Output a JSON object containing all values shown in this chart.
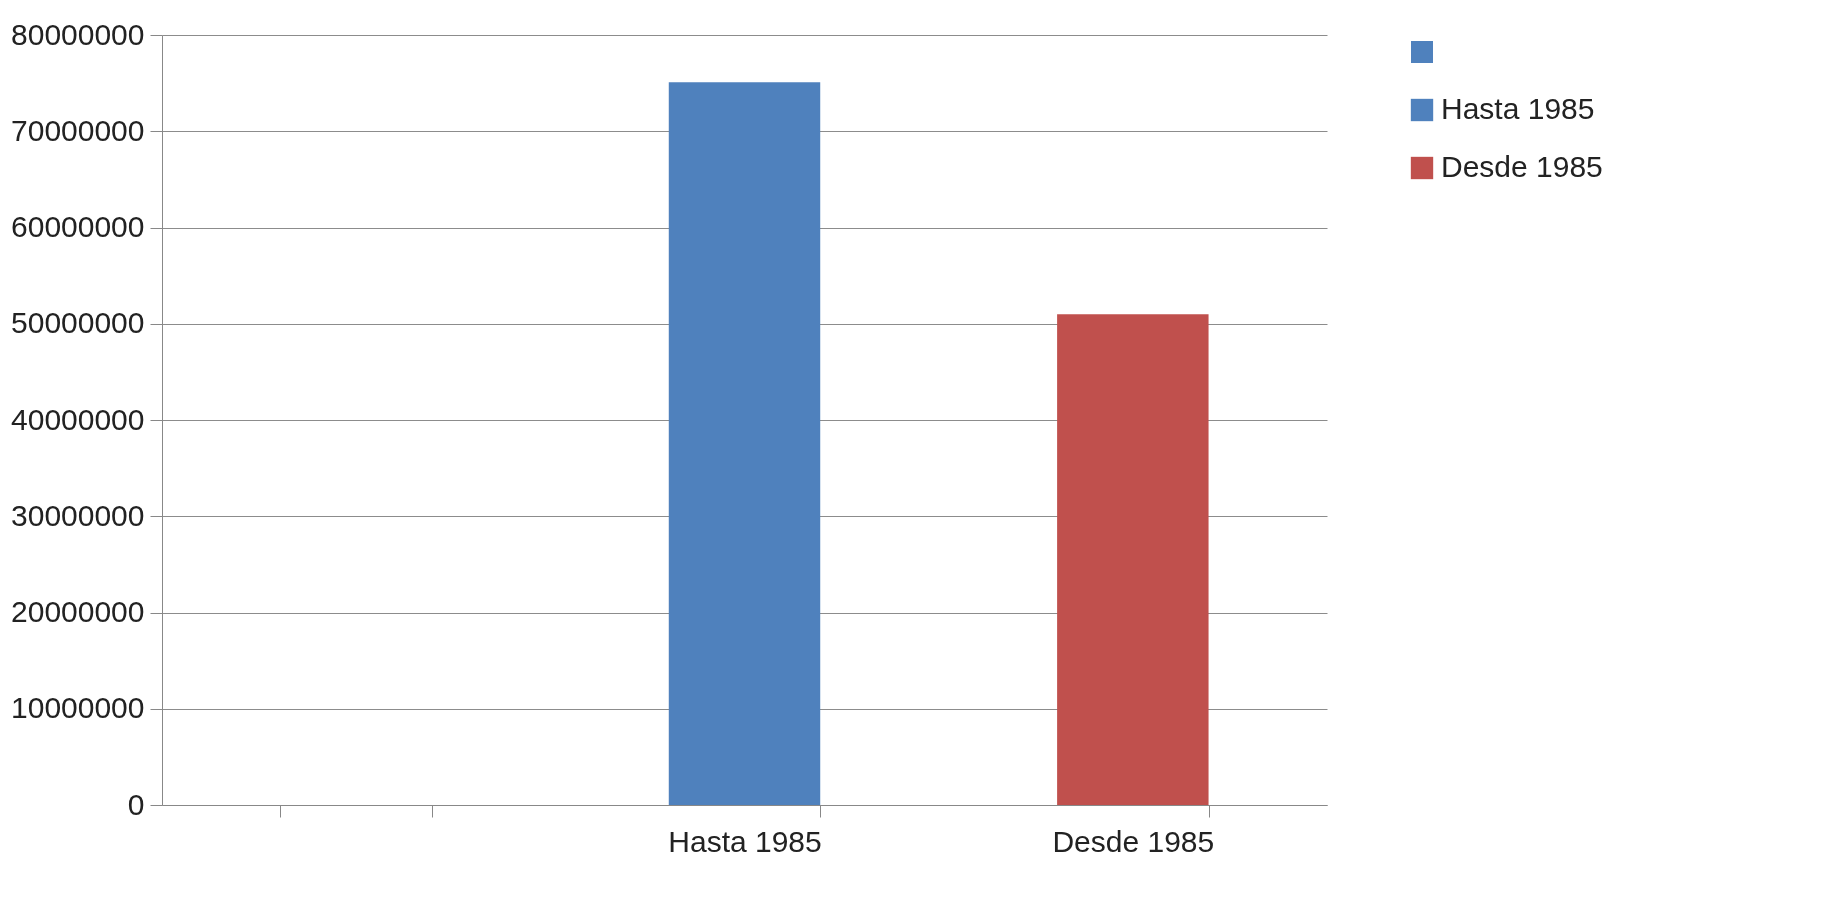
{
  "chart_data": {
    "type": "bar",
    "categories": [
      null,
      "Hasta 1985",
      "Desde 1985"
    ],
    "series": [
      {
        "name": "Hasta 1985",
        "color": "#4f81bd",
        "values": [
          null,
          75100000,
          null
        ]
      },
      {
        "name": "Desde 1985",
        "color": "#c0504d",
        "values": [
          null,
          null,
          51000000
        ]
      }
    ],
    "ylim": [
      0,
      80000000
    ],
    "yticks": [
      0,
      10000000,
      20000000,
      30000000,
      40000000,
      50000000,
      60000000,
      70000000,
      80000000
    ],
    "grid": "y",
    "legend": "right"
  }
}
